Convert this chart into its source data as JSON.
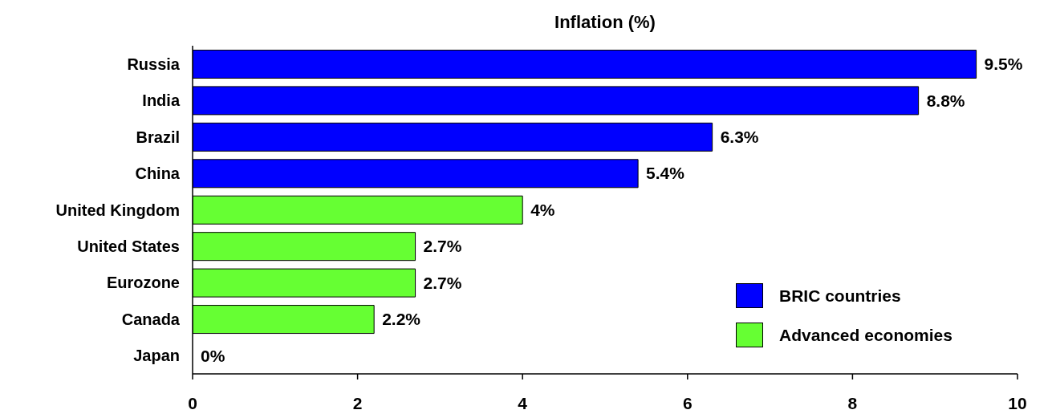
{
  "chart_data": {
    "type": "bar",
    "orientation": "horizontal",
    "title": "Inflation (%)",
    "categories": [
      "Russia",
      "India",
      "Brazil",
      "China",
      "United Kingdom",
      "United States",
      "Eurozone",
      "Canada",
      "Japan"
    ],
    "series": [
      {
        "name": "BRIC countries",
        "color": "#0000ff",
        "values": [
          9.5,
          8.8,
          6.3,
          5.4,
          null,
          null,
          null,
          null,
          null
        ],
        "value_labels": [
          "9.5%",
          "8.8%",
          "6.3%",
          "5.4%",
          null,
          null,
          null,
          null,
          null
        ]
      },
      {
        "name": "Advanced economies",
        "color": "#66ff33",
        "values": [
          null,
          null,
          null,
          null,
          4,
          2.7,
          2.7,
          2.2,
          0
        ],
        "value_labels": [
          null,
          null,
          null,
          null,
          "4%",
          "2.7%",
          "2.7%",
          "2.2%",
          "0%"
        ]
      }
    ],
    "xlim": [
      0,
      10
    ],
    "xticks": [
      0,
      2,
      4,
      6,
      8,
      10
    ],
    "legend": "bottom right"
  }
}
